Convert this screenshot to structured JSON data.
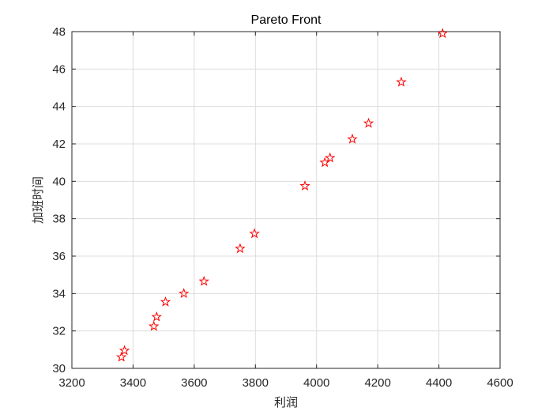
{
  "chart_data": {
    "type": "scatter",
    "title": "Pareto Front",
    "xlabel": "利润",
    "ylabel": "加班时间",
    "xlim": [
      3200,
      4600
    ],
    "ylim": [
      30,
      48
    ],
    "x_ticks": [
      3200,
      3400,
      3600,
      3800,
      4000,
      4200,
      4400,
      4600
    ],
    "y_ticks": [
      30,
      32,
      34,
      36,
      38,
      40,
      42,
      44,
      46,
      48
    ],
    "grid": true,
    "legend": "none",
    "marker": "pentagram",
    "marker_color": "#ff0000",
    "series": [
      {
        "points": [
          {
            "x": 3362,
            "y": 30.6
          },
          {
            "x": 3372,
            "y": 30.95
          },
          {
            "x": 3468,
            "y": 32.25
          },
          {
            "x": 3477,
            "y": 32.75
          },
          {
            "x": 3506,
            "y": 33.55
          },
          {
            "x": 3566,
            "y": 34.0
          },
          {
            "x": 3632,
            "y": 34.65
          },
          {
            "x": 3750,
            "y": 36.4
          },
          {
            "x": 3797,
            "y": 37.2
          },
          {
            "x": 3962,
            "y": 39.75
          },
          {
            "x": 4027,
            "y": 41.0
          },
          {
            "x": 4044,
            "y": 41.25
          },
          {
            "x": 4117,
            "y": 42.25
          },
          {
            "x": 4170,
            "y": 43.1
          },
          {
            "x": 4277,
            "y": 45.3
          },
          {
            "x": 4412,
            "y": 47.9
          }
        ]
      }
    ]
  }
}
